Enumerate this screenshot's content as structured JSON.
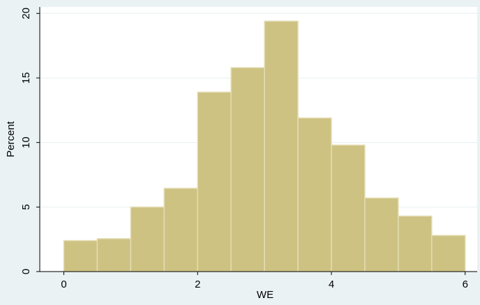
{
  "chart_data": {
    "type": "histogram",
    "bins": [
      0,
      0.5,
      1,
      1.5,
      2,
      2.5,
      3,
      3.5,
      4,
      4.5,
      5,
      5.5,
      6
    ],
    "values": [
      2.4,
      2.55,
      5.0,
      6.45,
      13.9,
      15.8,
      19.4,
      11.9,
      9.8,
      5.7,
      4.3,
      2.8
    ],
    "color": "#cdc282",
    "x_label": "WE",
    "y_label": "Percent",
    "xlim": [
      -0.36,
      6.18
    ],
    "xticks": [
      0,
      2,
      4,
      6
    ],
    "ylim": [
      0,
      20.5
    ],
    "yticks": [
      0,
      5,
      10,
      15,
      20
    ],
    "grid": true
  }
}
